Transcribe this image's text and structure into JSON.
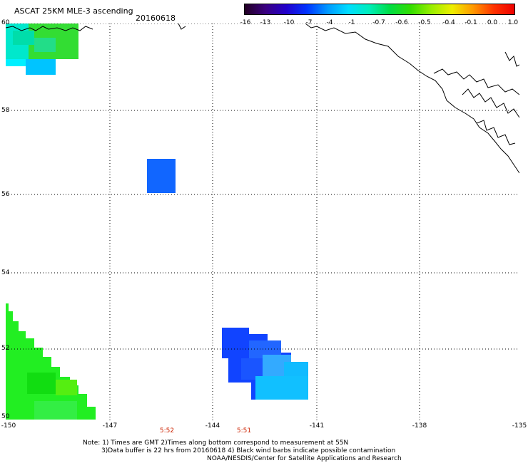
{
  "header": {
    "title": "ASCAT 25KM MLE-3 ascending",
    "date": "20160618"
  },
  "colorbar": {
    "ticks": [
      "-16",
      "-13",
      "-10",
      "-7",
      "-4",
      "-1",
      "-0.7",
      "-0.6",
      "-0.5",
      "-0.4",
      "-0.1",
      "0.0",
      "1.0"
    ]
  },
  "axes": {
    "lat_labels": [
      "60",
      "58",
      "56",
      "54",
      "52",
      "50"
    ],
    "lon_labels": [
      "-150",
      "-147",
      "-144",
      "-141",
      "-138",
      "-135"
    ]
  },
  "time_labels": [
    "5:52",
    "5:51"
  ],
  "notes": {
    "line1": "Note: 1) Times are GMT 2)Times along bottom correspond to measurement at 55N",
    "line2": "3)Data buffer is 22 hrs from 20160618 4) Black wind barbs indicate possible contamination",
    "line3": "NOAA/NESDIS/Center for Satellite Applications and Research"
  },
  "colors": {
    "cyan": "#00ddff",
    "green": "#22ee22",
    "blue": "#1144ff"
  }
}
